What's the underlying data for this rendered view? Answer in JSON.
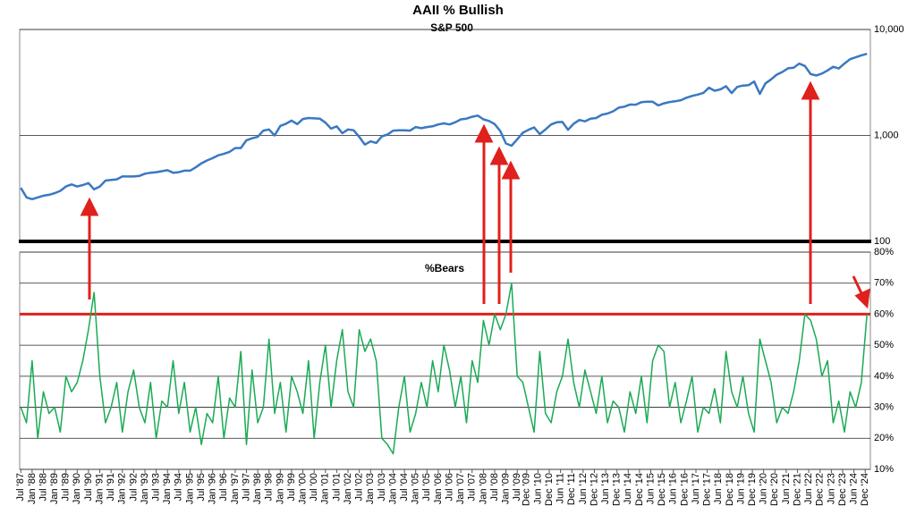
{
  "chart_data": [
    {
      "type": "line",
      "title": "AAII % Bullish",
      "subtitle": "S&P 500",
      "log_scale": true,
      "color": "#3a78c2",
      "grid": true,
      "xlim": [
        1987.45,
        2025.15
      ],
      "ylim": [
        100,
        10000
      ],
      "yticks": [
        100,
        {
          "value": 1000,
          "label": "1,000"
        },
        {
          "value": 10000,
          "label": "10,000"
        }
      ],
      "x": [
        1987.5,
        1987.75,
        1988,
        1988.25,
        1988.5,
        1988.75,
        1989,
        1989.25,
        1989.5,
        1989.75,
        1990,
        1990.25,
        1990.5,
        1990.75,
        1991,
        1991.25,
        1991.5,
        1991.75,
        1992,
        1992.25,
        1992.5,
        1992.75,
        1993,
        1993.25,
        1993.5,
        1993.75,
        1994,
        1994.25,
        1994.5,
        1994.75,
        1995,
        1995.25,
        1995.5,
        1995.75,
        1996,
        1996.25,
        1996.5,
        1996.75,
        1997,
        1997.25,
        1997.5,
        1997.75,
        1998,
        1998.25,
        1998.5,
        1998.75,
        1999,
        1999.25,
        1999.5,
        1999.75,
        2000,
        2000.25,
        2000.5,
        2000.75,
        2001,
        2001.25,
        2001.5,
        2001.75,
        2002,
        2002.25,
        2002.5,
        2002.75,
        2003,
        2003.25,
        2003.5,
        2003.75,
        2004,
        2004.25,
        2004.5,
        2004.75,
        2005,
        2005.25,
        2005.5,
        2005.75,
        2006,
        2006.25,
        2006.5,
        2006.75,
        2007,
        2007.25,
        2007.5,
        2007.75,
        2008,
        2008.25,
        2008.5,
        2008.75,
        2009,
        2009.25,
        2009.5,
        2009.75,
        2010,
        2010.25,
        2010.5,
        2010.75,
        2011,
        2011.25,
        2011.5,
        2011.75,
        2012,
        2012.25,
        2012.5,
        2012.75,
        2013,
        2013.25,
        2013.5,
        2013.75,
        2014,
        2014.25,
        2014.5,
        2014.75,
        2015,
        2015.25,
        2015.5,
        2015.75,
        2016,
        2016.25,
        2016.5,
        2016.75,
        2017,
        2017.25,
        2017.5,
        2017.75,
        2018,
        2018.25,
        2018.5,
        2018.75,
        2019,
        2019.25,
        2019.5,
        2019.75,
        2020,
        2020.25,
        2020.5,
        2020.75,
        2021,
        2021.25,
        2021.5,
        2021.75,
        2022,
        2022.25,
        2022.5,
        2022.75,
        2023,
        2023.25,
        2023.5,
        2023.75,
        2024,
        2024.25,
        2024.5,
        2024.75,
        2025
      ],
      "values": [
        320,
        260,
        250,
        260,
        270,
        275,
        285,
        300,
        330,
        345,
        330,
        340,
        355,
        310,
        330,
        375,
        380,
        385,
        410,
        410,
        410,
        415,
        435,
        445,
        450,
        460,
        470,
        445,
        450,
        465,
        465,
        500,
        545,
        580,
        610,
        650,
        670,
        700,
        760,
        760,
        900,
        940,
        970,
        1110,
        1140,
        1000,
        1230,
        1290,
        1380,
        1280,
        1430,
        1460,
        1450,
        1440,
        1320,
        1160,
        1220,
        1050,
        1140,
        1120,
        970,
        820,
        880,
        850,
        980,
        1020,
        1110,
        1120,
        1120,
        1110,
        1200,
        1170,
        1200,
        1220,
        1270,
        1300,
        1270,
        1330,
        1420,
        1440,
        1500,
        1540,
        1420,
        1370,
        1280,
        1100,
        840,
        800,
        920,
        1060,
        1130,
        1190,
        1030,
        1140,
        1270,
        1330,
        1340,
        1130,
        1290,
        1400,
        1360,
        1440,
        1460,
        1570,
        1610,
        1690,
        1830,
        1870,
        1960,
        1950,
        2060,
        2080,
        2080,
        1920,
        2010,
        2070,
        2100,
        2150,
        2270,
        2360,
        2430,
        2520,
        2820,
        2640,
        2720,
        2920,
        2510,
        2870,
        2960,
        2980,
        3230,
        2470,
        3100,
        3380,
        3750,
        3970,
        4300,
        4360,
        4770,
        4530,
        3790,
        3680,
        3840,
        4110,
        4450,
        4290,
        4770,
        5250,
        5460,
        5700,
        5900
      ]
    },
    {
      "type": "line",
      "title": "%Bears",
      "color": "#1aaa55",
      "grid": true,
      "reference_line": {
        "value": 60,
        "color": "#e0201c"
      },
      "xlim": [
        1987.45,
        2025.15
      ],
      "ylim": [
        10,
        80
      ],
      "yticks": [
        {
          "value": 10,
          "label": "10%"
        },
        {
          "value": 20,
          "label": "20%"
        },
        {
          "value": 30,
          "label": "30%"
        },
        {
          "value": 40,
          "label": "40%"
        },
        {
          "value": 50,
          "label": "50%"
        },
        {
          "value": 60,
          "label": "60%"
        },
        {
          "value": 70,
          "label": "70%"
        },
        {
          "value": 80,
          "label": "80%"
        }
      ],
      "xticks": [
        {
          "value": 1987.5,
          "label": "Jul '87"
        },
        {
          "value": 1988,
          "label": "Jan '88"
        },
        {
          "value": 1988.5,
          "label": "Jul '88"
        },
        {
          "value": 1989,
          "label": "Jan '89"
        },
        {
          "value": 1989.5,
          "label": "Jul '89"
        },
        {
          "value": 1990,
          "label": "Jan '90"
        },
        {
          "value": 1990.5,
          "label": "Jul '90"
        },
        {
          "value": 1991,
          "label": "Jan '91"
        },
        {
          "value": 1991.5,
          "label": "Jul '91"
        },
        {
          "value": 1992,
          "label": "Jan '92"
        },
        {
          "value": 1992.5,
          "label": "Jul '92"
        },
        {
          "value": 1993,
          "label": "Jan '93"
        },
        {
          "value": 1993.5,
          "label": "Jul '93"
        },
        {
          "value": 1994,
          "label": "Jan '94"
        },
        {
          "value": 1994.5,
          "label": "Jul '94"
        },
        {
          "value": 1995,
          "label": "Jan '95"
        },
        {
          "value": 1995.5,
          "label": "Jul '95"
        },
        {
          "value": 1996,
          "label": "Jan '96"
        },
        {
          "value": 1996.5,
          "label": "Jul '96"
        },
        {
          "value": 1997,
          "label": "Jan '97"
        },
        {
          "value": 1997.5,
          "label": "Jul '97"
        },
        {
          "value": 1998,
          "label": "Jan '98"
        },
        {
          "value": 1998.5,
          "label": "Jul '98"
        },
        {
          "value": 1999,
          "label": "Jan '99"
        },
        {
          "value": 1999.5,
          "label": "Jul '99"
        },
        {
          "value": 2000,
          "label": "Jan '00"
        },
        {
          "value": 2000.5,
          "label": "Jul '00"
        },
        {
          "value": 2001,
          "label": "Jan '01"
        },
        {
          "value": 2001.5,
          "label": "Jul '01"
        },
        {
          "value": 2002,
          "label": "Jan '02"
        },
        {
          "value": 2002.5,
          "label": "Jul '02"
        },
        {
          "value": 2003,
          "label": "Jan '03"
        },
        {
          "value": 2003.5,
          "label": "Jul '03"
        },
        {
          "value": 2004,
          "label": "Jan '04"
        },
        {
          "value": 2004.5,
          "label": "Jul '04"
        },
        {
          "value": 2005,
          "label": "Jan '05"
        },
        {
          "value": 2005.5,
          "label": "Jul '05"
        },
        {
          "value": 2006,
          "label": "Jan '06"
        },
        {
          "value": 2006.5,
          "label": "Jul '06"
        },
        {
          "value": 2007,
          "label": "Jan '07"
        },
        {
          "value": 2007.5,
          "label": "Jul '07"
        },
        {
          "value": 2008,
          "label": "Jan '08"
        },
        {
          "value": 2008.5,
          "label": "Jul '08"
        },
        {
          "value": 2009,
          "label": "Jan '09"
        },
        {
          "value": 2009.5,
          "label": "Jul '09"
        },
        {
          "value": 2009.92,
          "label": "Dec '09"
        },
        {
          "value": 2010.42,
          "label": "Jun '10"
        },
        {
          "value": 2010.92,
          "label": "Dec '10"
        },
        {
          "value": 2011.42,
          "label": "Jun '11"
        },
        {
          "value": 2011.92,
          "label": "Dec '11"
        },
        {
          "value": 2012.42,
          "label": "Jun '12"
        },
        {
          "value": 2012.92,
          "label": "Dec '12"
        },
        {
          "value": 2013.42,
          "label": "Jun '13"
        },
        {
          "value": 2013.92,
          "label": "Dec '13"
        },
        {
          "value": 2014.42,
          "label": "Jun '14"
        },
        {
          "value": 2014.92,
          "label": "Dec '14"
        },
        {
          "value": 2015.42,
          "label": "Jun '15"
        },
        {
          "value": 2015.92,
          "label": "Dec '15"
        },
        {
          "value": 2016.42,
          "label": "Jun '16"
        },
        {
          "value": 2016.92,
          "label": "Dec '16"
        },
        {
          "value": 2017.42,
          "label": "Jun '17"
        },
        {
          "value": 2017.92,
          "label": "Dec '17"
        },
        {
          "value": 2018.42,
          "label": "Jun '18"
        },
        {
          "value": 2018.92,
          "label": "Dec '18"
        },
        {
          "value": 2019.42,
          "label": "Jun '19"
        },
        {
          "value": 2019.92,
          "label": "Dec '19"
        },
        {
          "value": 2020.42,
          "label": "Jun '20"
        },
        {
          "value": 2020.92,
          "label": "Dec '20"
        },
        {
          "value": 2021.42,
          "label": "Jun '21"
        },
        {
          "value": 2021.92,
          "label": "Dec '21"
        },
        {
          "value": 2022.42,
          "label": "Jun '22"
        },
        {
          "value": 2022.92,
          "label": "Dec '22"
        },
        {
          "value": 2023.42,
          "label": "Jun '23"
        },
        {
          "value": 2023.92,
          "label": "Dec '23"
        },
        {
          "value": 2024.42,
          "label": "Jun '24"
        },
        {
          "value": 2024.92,
          "label": "Dec '24"
        }
      ],
      "x": [
        1987.5,
        1987.75,
        1988,
        1988.25,
        1988.5,
        1988.75,
        1989,
        1989.25,
        1989.5,
        1989.75,
        1990,
        1990.25,
        1990.5,
        1990.75,
        1991,
        1991.25,
        1991.5,
        1991.75,
        1992,
        1992.25,
        1992.5,
        1992.75,
        1993,
        1993.25,
        1993.5,
        1993.75,
        1994,
        1994.25,
        1994.5,
        1994.75,
        1995,
        1995.25,
        1995.5,
        1995.75,
        1996,
        1996.25,
        1996.5,
        1996.75,
        1997,
        1997.25,
        1997.5,
        1997.75,
        1998,
        1998.25,
        1998.5,
        1998.75,
        1999,
        1999.25,
        1999.5,
        1999.75,
        2000,
        2000.25,
        2000.5,
        2000.75,
        2001,
        2001.25,
        2001.5,
        2001.75,
        2002,
        2002.25,
        2002.5,
        2002.75,
        2003,
        2003.25,
        2003.5,
        2003.75,
        2004,
        2004.25,
        2004.5,
        2004.75,
        2005,
        2005.25,
        2005.5,
        2005.75,
        2006,
        2006.25,
        2006.5,
        2006.75,
        2007,
        2007.25,
        2007.5,
        2007.75,
        2008,
        2008.25,
        2008.5,
        2008.75,
        2009,
        2009.25,
        2009.5,
        2009.75,
        2010,
        2010.25,
        2010.5,
        2010.75,
        2011,
        2011.25,
        2011.5,
        2011.75,
        2012,
        2012.25,
        2012.5,
        2012.75,
        2013,
        2013.25,
        2013.5,
        2013.75,
        2014,
        2014.25,
        2014.5,
        2014.75,
        2015,
        2015.25,
        2015.5,
        2015.75,
        2016,
        2016.25,
        2016.5,
        2016.75,
        2017,
        2017.25,
        2017.5,
        2017.75,
        2018,
        2018.25,
        2018.5,
        2018.75,
        2019,
        2019.25,
        2019.5,
        2019.75,
        2020,
        2020.25,
        2020.5,
        2020.75,
        2021,
        2021.25,
        2021.5,
        2021.75,
        2022,
        2022.25,
        2022.5,
        2022.75,
        2023,
        2023.25,
        2023.5,
        2023.75,
        2024,
        2024.25,
        2024.5,
        2024.75,
        2025
      ],
      "values": [
        30,
        25,
        45,
        20,
        35,
        28,
        30,
        22,
        40,
        35,
        38,
        45,
        55,
        67,
        40,
        25,
        30,
        38,
        22,
        35,
        42,
        30,
        25,
        38,
        20,
        32,
        30,
        45,
        28,
        38,
        22,
        30,
        18,
        28,
        25,
        40,
        20,
        33,
        30,
        48,
        18,
        42,
        25,
        30,
        52,
        28,
        38,
        22,
        40,
        35,
        28,
        45,
        20,
        38,
        50,
        30,
        45,
        55,
        35,
        30,
        55,
        48,
        52,
        45,
        20,
        18,
        15,
        30,
        40,
        22,
        28,
        38,
        30,
        45,
        35,
        50,
        42,
        30,
        40,
        25,
        45,
        38,
        58,
        50,
        60,
        55,
        60,
        70,
        40,
        38,
        30,
        22,
        48,
        28,
        25,
        35,
        40,
        52,
        38,
        30,
        42,
        35,
        28,
        40,
        25,
        32,
        30,
        22,
        35,
        28,
        40,
        25,
        45,
        50,
        48,
        30,
        38,
        25,
        32,
        40,
        22,
        30,
        28,
        36,
        25,
        48,
        35,
        30,
        40,
        28,
        22,
        52,
        45,
        38,
        25,
        30,
        28,
        35,
        45,
        60,
        58,
        52,
        40,
        45,
        25,
        32,
        22,
        35,
        30,
        38,
        60
      ]
    }
  ]
}
